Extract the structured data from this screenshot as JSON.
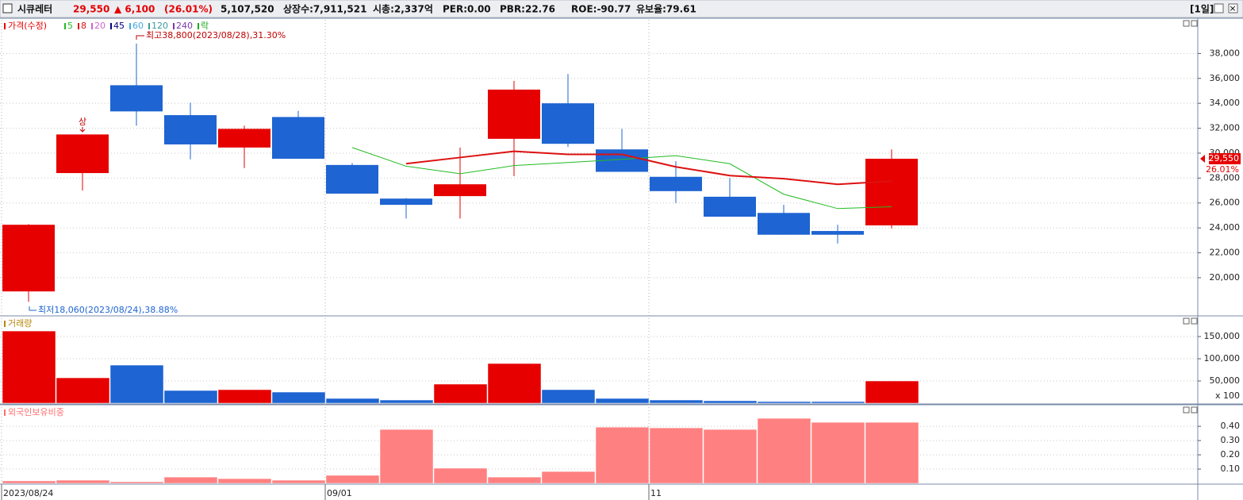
{
  "header": {
    "name": "시큐레터",
    "price": "29,550",
    "change": "▲ 6,100",
    "change_pct": "(26.01%)",
    "volume": "5,107,520",
    "stats": [
      "상장수:7,911,521",
      "시총:2,337억",
      "PER:0.00",
      "PBR:22.76",
      "ROE:-90.77",
      "유보율:79.61"
    ],
    "period": "[1일]"
  },
  "chart_data": [
    {
      "type": "candlestick",
      "title": "가격(수정)",
      "title_color": "#e60000",
      "categories": [
        "2023/08/24",
        null,
        null,
        null,
        null,
        null,
        "09/01",
        null,
        null,
        null,
        null,
        null,
        "11",
        null,
        null,
        null,
        null
      ],
      "open": [
        18900,
        28400,
        35450,
        33050,
        30450,
        32900,
        29050,
        26350,
        26550,
        31150,
        34000,
        30300,
        28100,
        26500,
        25200,
        23750,
        24200
      ],
      "high": [
        24300,
        31500,
        38800,
        34050,
        32200,
        33400,
        29200,
        26400,
        30450,
        35800,
        36350,
        31950,
        29350,
        28000,
        25850,
        24250,
        30300
      ],
      "low": [
        18060,
        27000,
        32200,
        29500,
        28800,
        29550,
        26750,
        24750,
        24750,
        28150,
        30500,
        28500,
        26000,
        24900,
        23450,
        22750,
        23950
      ],
      "close": [
        24250,
        31500,
        33350,
        30700,
        31950,
        29550,
        26750,
        25850,
        27500,
        35100,
        30750,
        28500,
        26950,
        24900,
        23450,
        23450,
        29550
      ],
      "up_color": "#e60000",
      "down_color": "#1e64d2",
      "series": [
        {
          "name": "5",
          "color": "#22bb22",
          "values": [
            null,
            null,
            null,
            null,
            null,
            null,
            30450,
            28950,
            28350,
            29000,
            29250,
            29500,
            29800,
            29150,
            26700,
            25550,
            25700
          ]
        },
        {
          "name": "8",
          "color": "#dd1111",
          "values": [
            null,
            null,
            null,
            null,
            null,
            null,
            null,
            29150,
            29650,
            30150,
            29900,
            29900,
            28900,
            28200,
            27950,
            27500,
            27750
          ]
        }
      ],
      "other_legend": [
        {
          "name": "20",
          "color": "#cc66cc"
        },
        {
          "name": "45",
          "color": "#000080"
        },
        {
          "name": "60",
          "color": "#44aadd"
        },
        {
          "name": "120",
          "color": "#3a9a9a"
        },
        {
          "name": "240",
          "color": "#7a3aaa"
        },
        {
          "name": "락",
          "color": "#22aa22"
        }
      ],
      "annotations": [
        "최고38,800(2023/08/28),31.30%",
        "최저18,060(2023/08/24),38.88%",
        "상"
      ],
      "last_price_label": "29,550",
      "last_change_label": "26.01%",
      "ylim": [
        17000,
        40700
      ],
      "yticks": [
        {
          "value": 20000,
          "label": "20,000"
        },
        {
          "value": 22000,
          "label": "22,000"
        },
        {
          "value": 24000,
          "label": "24,000"
        },
        {
          "value": 26000,
          "label": "26,000"
        },
        {
          "value": 28000,
          "label": "28,000"
        },
        {
          "value": 30000,
          "label": "30,000"
        },
        {
          "value": 32000,
          "label": "32,000"
        },
        {
          "value": 34000,
          "label": "34,000"
        },
        {
          "value": 36000,
          "label": "36,000"
        },
        {
          "value": 38000,
          "label": "38,000"
        }
      ],
      "grid": true
    },
    {
      "type": "bar",
      "title": "거래량",
      "title_color": "#b8860b",
      "unit_label": "x 100",
      "values": [
        162500,
        57100,
        85700,
        28600,
        30400,
        25000,
        10700,
        7100,
        42900,
        89300,
        30400,
        10700,
        7100,
        5400,
        3600,
        3600,
        50000
      ],
      "colors": [
        "#e60000",
        "#e60000",
        "#1e64d2",
        "#1e64d2",
        "#e60000",
        "#1e64d2",
        "#1e64d2",
        "#1e64d2",
        "#e60000",
        "#e60000",
        "#1e64d2",
        "#1e64d2",
        "#1e64d2",
        "#1e64d2",
        "#1e64d2",
        "#1e64d2",
        "#e60000"
      ],
      "ylim": [
        0,
        193000
      ],
      "yticks": [
        {
          "value": 50000,
          "label": "50,000"
        },
        {
          "value": 100000,
          "label": "100,000"
        },
        {
          "value": 150000,
          "label": "150,000"
        }
      ],
      "grid": true
    },
    {
      "type": "bar",
      "title": "외국인보유비중",
      "title_color": "#ff6f6f",
      "values": [
        0.017,
        0.022,
        0.011,
        0.044,
        0.033,
        0.022,
        0.056,
        0.378,
        0.106,
        0.044,
        0.083,
        0.394,
        0.389,
        0.378,
        0.456,
        0.428,
        0.428
      ],
      "color": "#ff8080",
      "ylim": [
        0,
        0.54
      ],
      "yticks": [
        {
          "value": 0.1,
          "label": "0.10"
        },
        {
          "value": 0.2,
          "label": "0.20"
        },
        {
          "value": 0.3,
          "label": "0.30"
        },
        {
          "value": 0.4,
          "label": "0.40"
        }
      ],
      "grid": true
    }
  ]
}
